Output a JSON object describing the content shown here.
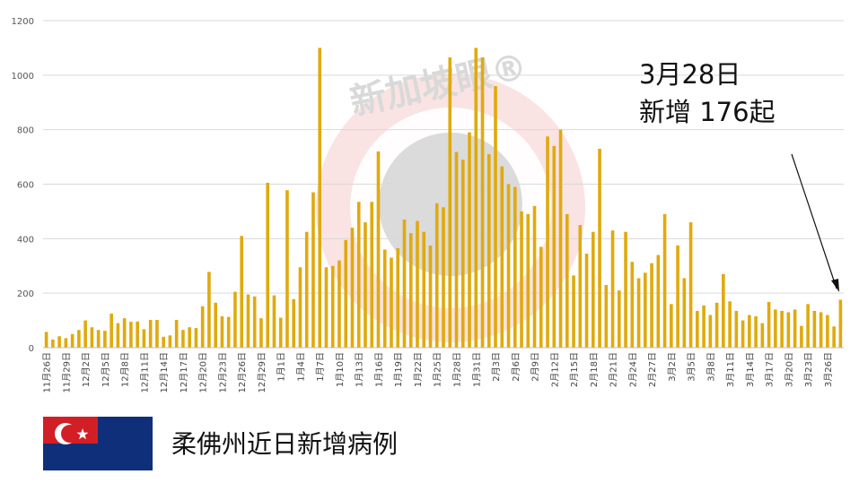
{
  "chart_data": {
    "type": "bar",
    "title": "柔佛州近日新增病例",
    "ylim": [
      0,
      1200
    ],
    "yticks": [
      0,
      200,
      400,
      600,
      800,
      1000,
      1200
    ],
    "grid": true,
    "bar_color": "#e0aa0f",
    "x_tick_labels": [
      "11月26日",
      "11月29日",
      "12月2日",
      "12月5日",
      "12月8日",
      "12月11日",
      "12月14日",
      "12月17日",
      "12月20日",
      "12月23日",
      "12月26日",
      "12月29日",
      "1月1日",
      "1月4日",
      "1月7日",
      "1月10日",
      "1月13日",
      "1月16日",
      "1月19日",
      "1月22日",
      "1月25日",
      "1月28日",
      "1月31日",
      "2月3日",
      "2月6日",
      "2月9日",
      "2月12日",
      "2月15日",
      "2月18日",
      "2月21日",
      "2月24日",
      "2月27日",
      "3月2日",
      "3月5日",
      "3月8日",
      "3月11日",
      "3月14日",
      "3月17日",
      "3月20日",
      "3月23日",
      "3月26日"
    ],
    "values": [
      58,
      30,
      42,
      35,
      50,
      65,
      100,
      75,
      65,
      62,
      125,
      90,
      108,
      95,
      96,
      68,
      102,
      102,
      40,
      45,
      102,
      65,
      75,
      72,
      152,
      278,
      165,
      115,
      113,
      205,
      410,
      195,
      188,
      108,
      605,
      192,
      110,
      578,
      178,
      295,
      425,
      570,
      1100,
      295,
      300,
      320,
      395,
      440,
      535,
      460,
      535,
      720,
      360,
      330,
      365,
      470,
      420,
      465,
      425,
      375,
      530,
      515,
      1065,
      718,
      690,
      790,
      1100,
      1065,
      710,
      960,
      665,
      600,
      590,
      500,
      490,
      520,
      370,
      775,
      740,
      800,
      490,
      265,
      450,
      345,
      425,
      730,
      230,
      430,
      210,
      425,
      315,
      255,
      275,
      310,
      340,
      490,
      160,
      375,
      255,
      460,
      135,
      155,
      120,
      165,
      270,
      170,
      135,
      100,
      120,
      115,
      90,
      168,
      140,
      135,
      130,
      140,
      80,
      160,
      135,
      130,
      120,
      78,
      176
    ],
    "annotation": [
      "3月28日",
      "新增 176起"
    ],
    "watermark": "新加坡眼®"
  },
  "colors": {
    "bar": "#e0aa0f",
    "grid": "#d9d9d9",
    "flag_blue": "#0f2f7a",
    "flag_red": "#d21f26"
  }
}
